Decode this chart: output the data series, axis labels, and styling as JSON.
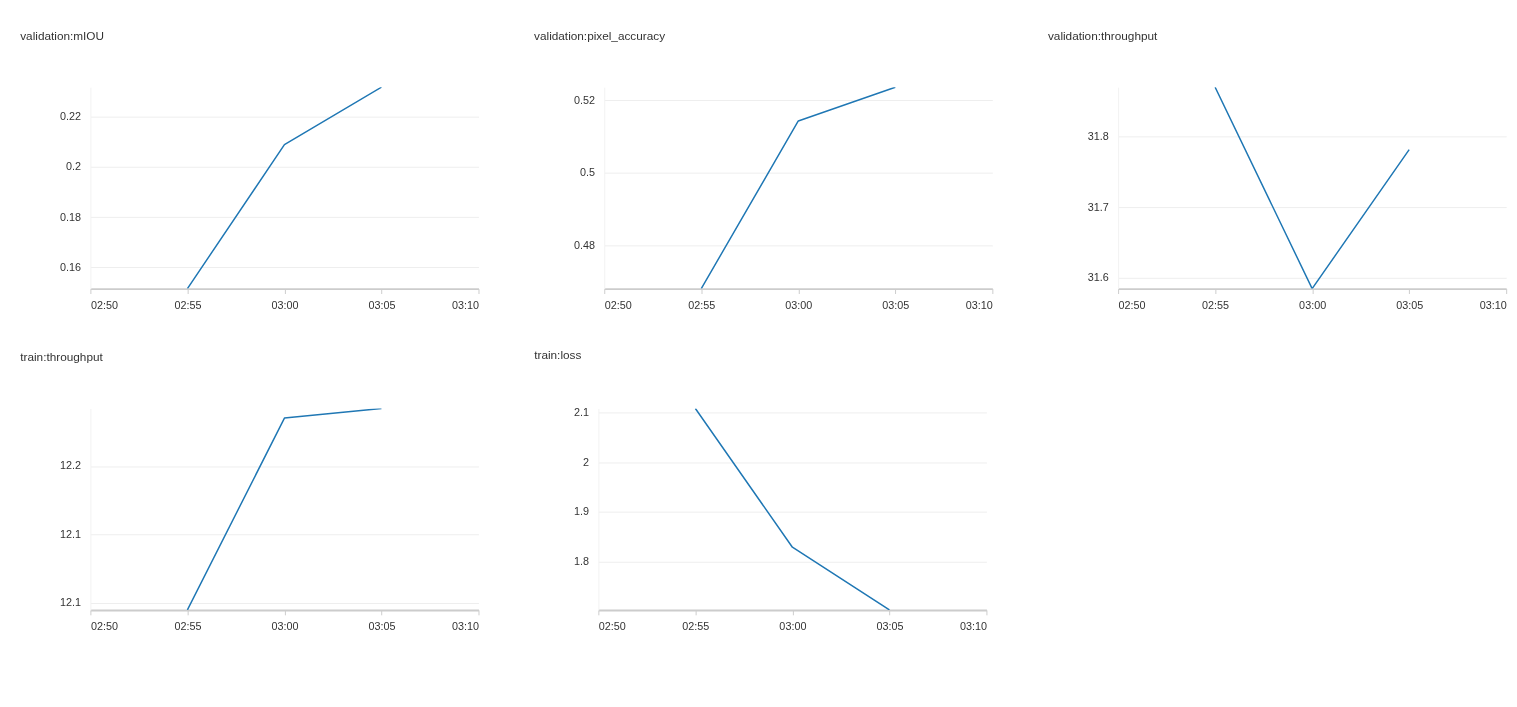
{
  "chart_data": [
    {
      "type": "line",
      "title": "validation:mIOU",
      "x": [
        2.916667,
        3.0,
        3.083333
      ],
      "values": [
        0.1515,
        0.2089,
        0.2318
      ],
      "color": "#1f77b4",
      "xlim": [
        2.833333,
        3.166667
      ],
      "xticks": [
        {
          "value": 2.833333,
          "label": "02:50"
        },
        {
          "value": 2.916667,
          "label": "02:55"
        },
        {
          "value": 3.0,
          "label": "03:00"
        },
        {
          "value": 3.083333,
          "label": "03:05"
        },
        {
          "value": 3.166667,
          "label": "03:10"
        }
      ],
      "ylim": [
        0.1515,
        0.2318
      ],
      "yticks": [
        0.16,
        0.18,
        0.2,
        0.22
      ],
      "grid": "y"
    },
    {
      "type": "line",
      "title": "validation:pixel_accuracy",
      "x": [
        2.916667,
        3.0,
        3.083333
      ],
      "values": [
        0.4681,
        0.5143,
        0.5236
      ],
      "color": "#1f77b4",
      "xlim": [
        2.833333,
        3.166667
      ],
      "xticks": [
        {
          "value": 2.833333,
          "label": "02:50"
        },
        {
          "value": 2.916667,
          "label": "02:55"
        },
        {
          "value": 3.0,
          "label": "03:00"
        },
        {
          "value": 3.083333,
          "label": "03:05"
        },
        {
          "value": 3.166667,
          "label": "03:10"
        }
      ],
      "ylim": [
        0.4681,
        0.5236
      ],
      "yticks": [
        0.48,
        0.5,
        0.52
      ],
      "grid": "y"
    },
    {
      "type": "line",
      "title": "validation:throughput",
      "x": [
        2.916667,
        3.0,
        3.083333
      ],
      "values": [
        31.869,
        31.585,
        31.781
      ],
      "color": "#1f77b4",
      "xlim": [
        2.833333,
        3.166667
      ],
      "xticks": [
        {
          "value": 2.833333,
          "label": "02:50"
        },
        {
          "value": 2.916667,
          "label": "02:55"
        },
        {
          "value": 3.0,
          "label": "03:00"
        },
        {
          "value": 3.083333,
          "label": "03:05"
        },
        {
          "value": 3.166667,
          "label": "03:10"
        }
      ],
      "ylim": [
        31.585,
        31.869
      ],
      "yticks": [
        31.6,
        31.7,
        31.8
      ],
      "grid": "y"
    },
    {
      "type": "line",
      "title": "train:throughput",
      "x": [
        2.916667,
        3.0,
        3.083333
      ],
      "values": [
        12.045,
        12.185,
        12.192
      ],
      "color": "#1f77b4",
      "xlim": [
        2.833333,
        3.166667
      ],
      "xticks": [
        {
          "value": 2.833333,
          "label": "02:50"
        },
        {
          "value": 2.916667,
          "label": "02:55"
        },
        {
          "value": 3.0,
          "label": "03:00"
        },
        {
          "value": 3.083333,
          "label": "03:05"
        },
        {
          "value": 3.166667,
          "label": "03:10"
        }
      ],
      "ylim": [
        12.045,
        12.192
      ],
      "yticks": [
        {
          "value": 12.05,
          "label": "12.1"
        },
        {
          "value": 12.1,
          "label": "12.1"
        },
        {
          "value": 12.15,
          "label": "12.2"
        }
      ],
      "grid": "y"
    },
    {
      "type": "line",
      "title": "train:loss",
      "x": [
        2.916667,
        3.0,
        3.083333
      ],
      "values": [
        2.108,
        1.829,
        1.703
      ],
      "color": "#1f77b4",
      "xlim": [
        2.833333,
        3.166667
      ],
      "xticks": [
        {
          "value": 2.833333,
          "label": "02:50"
        },
        {
          "value": 2.916667,
          "label": "02:55"
        },
        {
          "value": 3.0,
          "label": "03:00"
        },
        {
          "value": 3.083333,
          "label": "03:05"
        },
        {
          "value": 3.166667,
          "label": "03:10"
        }
      ],
      "ylim": [
        1.703,
        2.108
      ],
      "yticks": [
        1.8,
        1.9,
        2,
        2.1
      ],
      "grid": "y"
    }
  ]
}
